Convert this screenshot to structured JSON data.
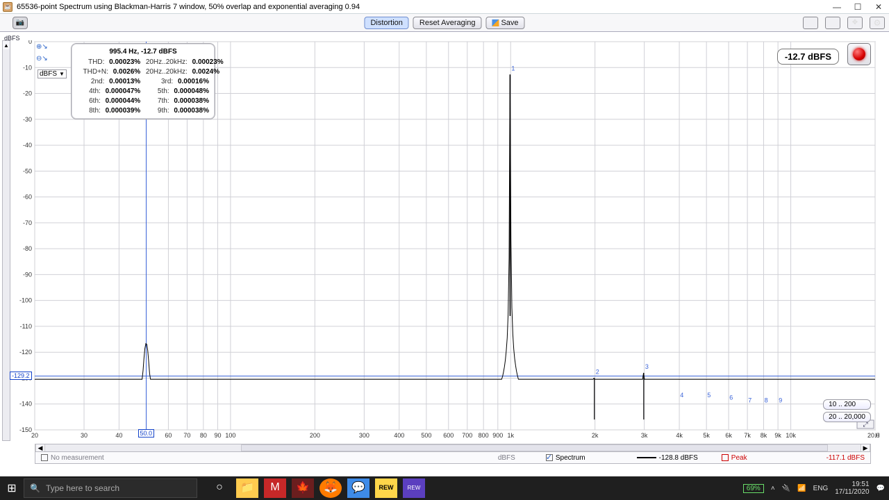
{
  "window": {
    "title": "65536-point Spectrum using Blackman-Harris 7 window, 50% overlap and exponential averaging 0.94"
  },
  "toolbar": {
    "distortion": "Distortion",
    "reset_avg": "Reset Averaging",
    "save": "Save"
  },
  "axis": {
    "y_label": "dBFS",
    "x_unit": "Hz"
  },
  "unit_select": "dBFS",
  "info": {
    "title": "995.4 Hz, -12.7 dBFS",
    "rows": [
      {
        "l_lab": "THD:",
        "l_val": "0.00023%",
        "r_lab": "20Hz..20kHz:",
        "r_val": "0.00023%"
      },
      {
        "l_lab": "THD+N:",
        "l_val": "0.0026%",
        "r_lab": "20Hz..20kHz:",
        "r_val": "0.0024%"
      },
      {
        "l_lab": "2nd:",
        "l_val": "0.00013%",
        "r_lab": "3rd:",
        "r_val": "0.00016%"
      },
      {
        "l_lab": "4th:",
        "l_val": "0.000047%",
        "r_lab": "5th:",
        "r_val": "0.000048%"
      },
      {
        "l_lab": "6th:",
        "l_val": "0.000044%",
        "r_lab": "7th:",
        "r_val": "0.000038%"
      },
      {
        "l_lab": "8th:",
        "l_val": "0.000039%",
        "r_lab": "9th:",
        "r_val": "0.000038%"
      }
    ]
  },
  "level_badge": "-12.7 dBFS",
  "range_badges": [
    "10 .. 200",
    "20 .. 20,000"
  ],
  "y_cursor": {
    "value": "-129.2",
    "db": -129.2
  },
  "x_cursor": {
    "value": "50.0",
    "hz": 50
  },
  "legend": {
    "no_meas": "No measurement",
    "no_meas_unit": "dBFS",
    "spectrum": "Spectrum",
    "spectrum_val": "-128.8 dBFS",
    "peak": "Peak",
    "peak_val": "-117.1 dBFS"
  },
  "chart": {
    "type": "spectrum-log",
    "x_range_hz": [
      20,
      20000
    ],
    "y_range_db": [
      -150,
      0
    ],
    "y_ticks": [
      0,
      -10,
      -20,
      -30,
      -40,
      -50,
      -60,
      -70,
      -80,
      -90,
      -100,
      -110,
      -120,
      -130,
      -140,
      -150
    ],
    "x_ticks": [
      20,
      30,
      40,
      50,
      60,
      70,
      80,
      90,
      100,
      200,
      300,
      400,
      500,
      600,
      700,
      800,
      900,
      1000,
      2000,
      3000,
      4000,
      5000,
      6000,
      7000,
      8000,
      9000,
      10000,
      20000
    ],
    "x_tick_labels": [
      "20",
      "30",
      "40",
      "50",
      "60",
      "70",
      "80",
      "90",
      "100",
      "200",
      "300",
      "400",
      "500",
      "600",
      "700",
      "800",
      "900",
      "1k",
      "2k",
      "3k",
      "4k",
      "5k",
      "6k",
      "7k",
      "8k",
      "9k",
      "10k",
      "20.0k"
    ],
    "grid_color": "#d0d0d6",
    "trace_color": "#000000",
    "cursor_color": "#3a63d8",
    "background": "#ffffff",
    "noise_floor_db": -146,
    "noise_jitter_db": 3,
    "mains_peak": {
      "hz": 50,
      "db": -130.5
    },
    "fundamental": {
      "hz": 995.4,
      "db": -12.7
    },
    "skirt_width_decades": 0.05,
    "skirt_floor_db": -136,
    "harmonics": [
      {
        "n": 1,
        "hz": 995,
        "db": -12.7
      },
      {
        "n": 2,
        "hz": 1990,
        "db": -130
      },
      {
        "n": 3,
        "hz": 2986,
        "db": -128
      },
      {
        "n": 4,
        "hz": 3981,
        "db": -139
      },
      {
        "n": 5,
        "hz": 4977,
        "db": -139
      },
      {
        "n": 6,
        "hz": 5972,
        "db": -140
      },
      {
        "n": 7,
        "hz": 6968,
        "db": -141
      },
      {
        "n": 8,
        "hz": 7963,
        "db": -141
      },
      {
        "n": 9,
        "hz": 8958,
        "db": -141
      }
    ]
  },
  "taskbar": {
    "search_placeholder": "Type here to search",
    "battery": "69%",
    "lang": "ENG",
    "time": "19:51",
    "date": "17/11/2020"
  },
  "colors": {
    "accent": "#3a63d8",
    "panel_border": "#a9a9b0",
    "toolbar_bg": "#f7f7f9"
  }
}
